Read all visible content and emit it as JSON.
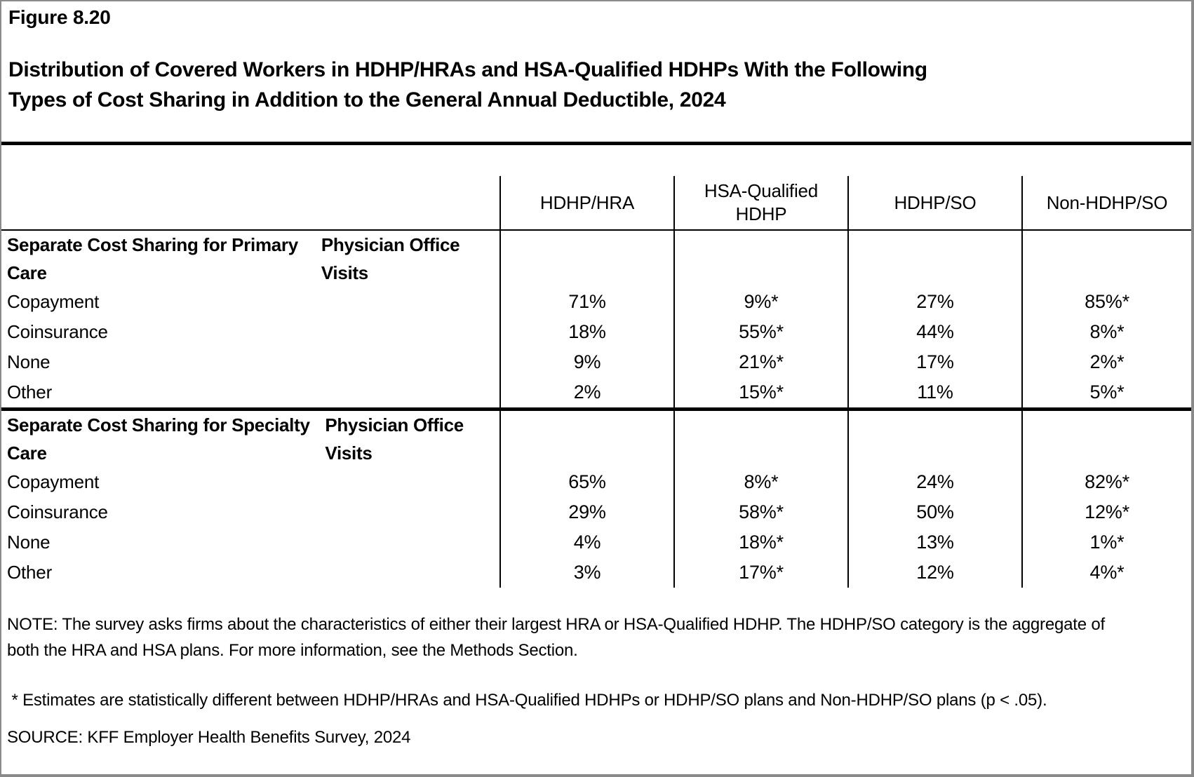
{
  "figure": {
    "label": "Figure 8.20",
    "title_lines": [
      "Distribution of Covered Workers in HDHP/HRAs and HSA-Qualified HDHPs With the Following",
      "Types of Cost Sharing in Addition to the General Annual Deductible, 2024"
    ]
  },
  "table": {
    "columns": [
      "HDHP/HRA",
      "HSA-Qualified HDHP",
      "HDHP/SO",
      "Non-HDHP/SO"
    ],
    "sections": [
      {
        "title_lines": [
          "Separate Cost Sharing for Primary Care",
          "Physician Office Visits"
        ],
        "rows": [
          {
            "label": "Copayment",
            "values": [
              "71%",
              "9%*",
              "27%",
              "85%*"
            ]
          },
          {
            "label": "Coinsurance",
            "values": [
              "18%",
              "55%*",
              "44%",
              "8%*"
            ]
          },
          {
            "label": "None",
            "values": [
              "9%",
              "21%*",
              "17%",
              "2%*"
            ]
          },
          {
            "label": "Other",
            "values": [
              "2%",
              "15%*",
              "11%",
              "5%*"
            ]
          }
        ]
      },
      {
        "title_lines": [
          "Separate Cost Sharing for Specialty Care",
          "Physician Office Visits"
        ],
        "rows": [
          {
            "label": "Copayment",
            "values": [
              "65%",
              "8%*",
              "24%",
              "82%*"
            ]
          },
          {
            "label": "Coinsurance",
            "values": [
              "29%",
              "58%*",
              "50%",
              "12%*"
            ]
          },
          {
            "label": "None",
            "values": [
              "4%",
              "18%*",
              "13%",
              "1%*"
            ]
          },
          {
            "label": "Other",
            "values": [
              "3%",
              "17%*",
              "12%",
              "4%*"
            ]
          }
        ]
      }
    ]
  },
  "notes": {
    "note": "NOTE: The survey asks firms about the characteristics of either their largest HRA or HSA-Qualified HDHP. The HDHP/SO category is the aggregate of both the HRA and HSA plans. For more information, see the Methods Section.",
    "significance": " * Estimates are statistically different between HDHP/HRAs and HSA-Qualified HDHPs or HDHP/SO plans and Non-HDHP/SO plans (p < .05).",
    "source": "SOURCE: KFF Employer Health Benefits Survey, 2024"
  },
  "chart_data": {
    "type": "table",
    "figure_number": "Figure 8.20",
    "title": "Distribution of Covered Workers in HDHP/HRAs and HSA-Qualified HDHPs With the Following Types of Cost Sharing in Addition to the General Annual Deductible, 2024",
    "columns": [
      "HDHP/HRA",
      "HSA-Qualified HDHP",
      "HDHP/SO",
      "Non-HDHP/SO"
    ],
    "sections": [
      {
        "section": "Separate Cost Sharing for Primary Care Physician Office Visits",
        "rows": [
          {
            "category": "Copayment",
            "values": [
              71,
              9,
              27,
              85
            ],
            "statistically_different": [
              false,
              true,
              false,
              true
            ]
          },
          {
            "category": "Coinsurance",
            "values": [
              18,
              55,
              44,
              8
            ],
            "statistically_different": [
              false,
              true,
              false,
              true
            ]
          },
          {
            "category": "None",
            "values": [
              9,
              21,
              17,
              2
            ],
            "statistically_different": [
              false,
              true,
              false,
              true
            ]
          },
          {
            "category": "Other",
            "values": [
              2,
              15,
              11,
              5
            ],
            "statistically_different": [
              false,
              true,
              false,
              true
            ]
          }
        ]
      },
      {
        "section": "Separate Cost Sharing for Specialty Care Physician Office Visits",
        "rows": [
          {
            "category": "Copayment",
            "values": [
              65,
              8,
              24,
              82
            ],
            "statistically_different": [
              false,
              true,
              false,
              true
            ]
          },
          {
            "category": "Coinsurance",
            "values": [
              29,
              58,
              50,
              12
            ],
            "statistically_different": [
              false,
              true,
              false,
              true
            ]
          },
          {
            "category": "None",
            "values": [
              4,
              18,
              13,
              1
            ],
            "statistically_different": [
              false,
              true,
              false,
              true
            ]
          },
          {
            "category": "Other",
            "values": [
              3,
              17,
              12,
              4
            ],
            "statistically_different": [
              false,
              true,
              false,
              true
            ]
          }
        ]
      }
    ],
    "footnotes": {
      "note": "NOTE: The survey asks firms about the characteristics of either their largest HRA or HSA-Qualified HDHP. The HDHP/SO category is the aggregate of both the HRA and HSA plans. For more information, see the Methods Section.",
      "asterisk": "* Estimates are statistically different between HDHP/HRAs and HSA-Qualified HDHPs or HDHP/SO plans and Non-HDHP/SO plans (p < .05).",
      "source": "SOURCE: KFF Employer Health Benefits Survey, 2024"
    }
  }
}
